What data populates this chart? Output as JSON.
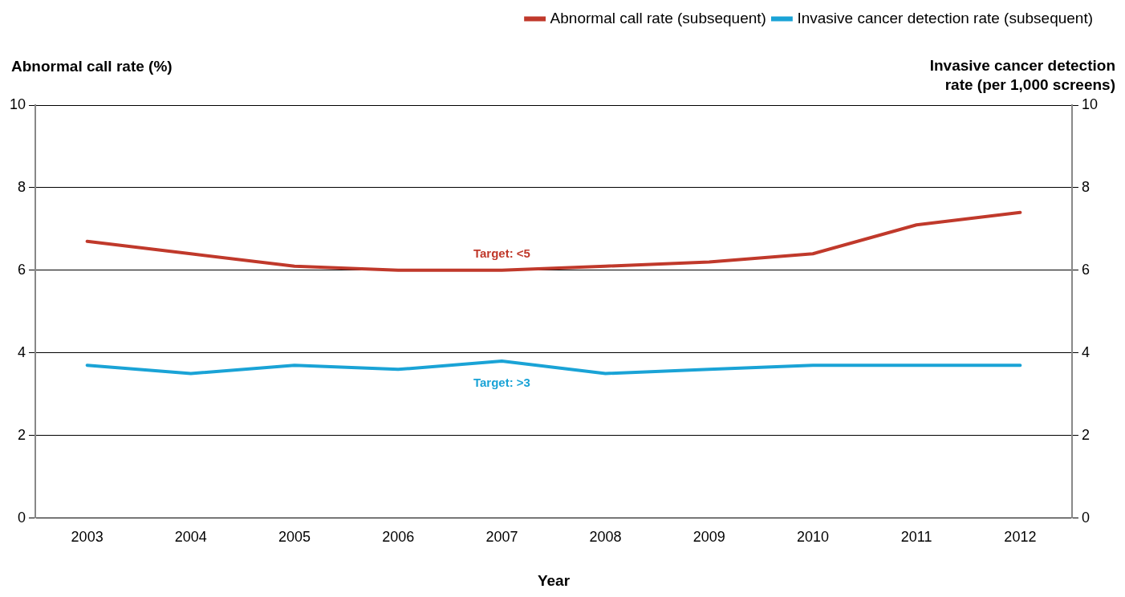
{
  "chart_data": {
    "type": "line",
    "xlabel": "Year",
    "ylabel": "Abnormal call rate (%)",
    "y2label": "Invasive cancer detection rate (per 1,000 screens)",
    "categories": [
      "2003",
      "2004",
      "2005",
      "2006",
      "2007",
      "2008",
      "2009",
      "2010",
      "2011",
      "2012"
    ],
    "series": [
      {
        "name": "Abnormal call rate (subsequent)",
        "color": "#c0392b",
        "values": [
          6.7,
          6.4,
          6.1,
          6.0,
          6.0,
          6.1,
          6.2,
          6.4,
          7.1,
          7.4
        ]
      },
      {
        "name": "Invasive cancer detection rate (subsequent)",
        "color": "#1aa3d6",
        "axis": "y2",
        "values": [
          3.7,
          3.5,
          3.7,
          3.6,
          3.8,
          3.5,
          3.6,
          3.7,
          3.7,
          3.7
        ]
      }
    ],
    "ylim": [
      0,
      10
    ],
    "yticks": [
      0,
      2,
      4,
      6,
      8,
      10
    ],
    "y2lim": [
      0,
      10
    ],
    "y2ticks": [
      0,
      2,
      4,
      6,
      8,
      10
    ],
    "annotations": [
      "Target: <5",
      "Target: >3"
    ],
    "grid": "y",
    "legend": "top right",
    "marker": "none",
    "line_style": "solid"
  }
}
